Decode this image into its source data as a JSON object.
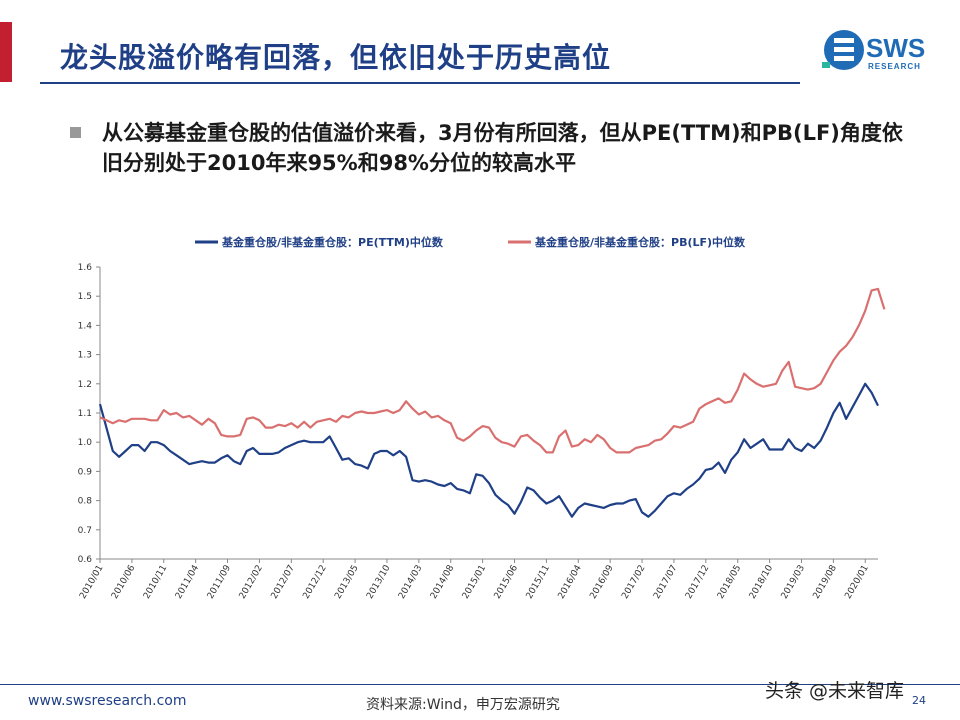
{
  "slide": {
    "title": "龙头股溢价略有回落，但依旧处于历史高位",
    "bullet": "从公募基金重仓股的估值溢价来看，3月份有所回落，但从PE(TTM)和PB(LF)角度依旧分别处于2010年来95%和98%分位的较高水平",
    "logo_main": "SWS",
    "logo_sub": "RESEARCH",
    "logo_icon": "sws-logo-icon",
    "footer_url": "www.swsresearch.com",
    "footer_source": "资料来源:Wind，申万宏源研究",
    "page_number": "24",
    "watermark": "头条 @未来智库",
    "colors": {
      "title": "#1f3f86",
      "accent": "#c21f30",
      "series_pe": "#1f3f86",
      "series_pb": "#d9706f"
    }
  },
  "chart_data": {
    "type": "line",
    "title": "",
    "xlabel": "",
    "ylabel": "",
    "ylim": [
      0.6,
      1.6
    ],
    "yticks": [
      "0.6",
      "0.7",
      "0.8",
      "0.9",
      "1.0",
      "1.1",
      "1.2",
      "1.3",
      "1.4",
      "1.5",
      "1.6"
    ],
    "grid": false,
    "legend_position": "top",
    "x_tick_labels": [
      "2010/01",
      "2010/06",
      "2010/11",
      "2011/04",
      "2011/09",
      "2012/02",
      "2012/07",
      "2012/12",
      "2013/05",
      "2013/10",
      "2014/03",
      "2014/08",
      "2015/01",
      "2015/06",
      "2015/11",
      "2016/04",
      "2016/09",
      "2017/02",
      "2017/07",
      "2017/12",
      "2018/05",
      "2018/10",
      "2019/03",
      "2019/08",
      "2020/01"
    ],
    "x_start": "2010/01",
    "x_end": "2020/03",
    "series": [
      {
        "name": "基金重仓股/非基金重仓股：PE(TTM)中位数",
        "color": "#1f3f86",
        "values": [
          1.13,
          1.05,
          0.97,
          0.95,
          0.97,
          0.99,
          0.99,
          0.97,
          1.0,
          1.0,
          0.99,
          0.97,
          0.955,
          0.94,
          0.925,
          0.93,
          0.935,
          0.93,
          0.93,
          0.945,
          0.955,
          0.935,
          0.925,
          0.97,
          0.98,
          0.96,
          0.96,
          0.96,
          0.965,
          0.98,
          0.99,
          1.0,
          1.005,
          1.0,
          1.0,
          1.0,
          1.02,
          0.98,
          0.94,
          0.945,
          0.925,
          0.92,
          0.91,
          0.96,
          0.97,
          0.97,
          0.955,
          0.97,
          0.95,
          0.87,
          0.865,
          0.87,
          0.865,
          0.855,
          0.85,
          0.86,
          0.84,
          0.835,
          0.825,
          0.89,
          0.885,
          0.86,
          0.82,
          0.8,
          0.785,
          0.755,
          0.795,
          0.845,
          0.835,
          0.81,
          0.79,
          0.8,
          0.815,
          0.78,
          0.745,
          0.775,
          0.79,
          0.785,
          0.78,
          0.775,
          0.785,
          0.79,
          0.79,
          0.8,
          0.805,
          0.76,
          0.745,
          0.765,
          0.79,
          0.815,
          0.825,
          0.82,
          0.84,
          0.855,
          0.875,
          0.905,
          0.91,
          0.93,
          0.895,
          0.94,
          0.965,
          1.01,
          0.98,
          0.995,
          1.01,
          0.975,
          0.975,
          0.975,
          1.01,
          0.98,
          0.97,
          0.995,
          0.98,
          1.005,
          1.05,
          1.1,
          1.135,
          1.08,
          1.12,
          1.16,
          1.2,
          1.17,
          1.125
        ]
      },
      {
        "name": "基金重仓股/非基金重仓股：PB(LF)中位数",
        "color": "#d9706f",
        "values": [
          1.085,
          1.075,
          1.065,
          1.075,
          1.07,
          1.08,
          1.08,
          1.08,
          1.075,
          1.075,
          1.11,
          1.095,
          1.1,
          1.085,
          1.09,
          1.075,
          1.06,
          1.08,
          1.065,
          1.025,
          1.02,
          1.02,
          1.025,
          1.08,
          1.085,
          1.075,
          1.05,
          1.05,
          1.06,
          1.055,
          1.065,
          1.05,
          1.07,
          1.05,
          1.07,
          1.075,
          1.08,
          1.07,
          1.09,
          1.085,
          1.1,
          1.105,
          1.1,
          1.1,
          1.105,
          1.11,
          1.1,
          1.11,
          1.14,
          1.115,
          1.095,
          1.105,
          1.085,
          1.09,
          1.075,
          1.065,
          1.015,
          1.005,
          1.02,
          1.04,
          1.055,
          1.05,
          1.015,
          1.0,
          0.995,
          0.985,
          1.02,
          1.025,
          1.005,
          0.99,
          0.965,
          0.965,
          1.02,
          1.04,
          0.985,
          0.99,
          1.01,
          1.0,
          1.025,
          1.01,
          0.98,
          0.965,
          0.965,
          0.965,
          0.98,
          0.985,
          0.99,
          1.005,
          1.01,
          1.03,
          1.055,
          1.05,
          1.06,
          1.07,
          1.115,
          1.13,
          1.14,
          1.15,
          1.135,
          1.14,
          1.18,
          1.235,
          1.215,
          1.2,
          1.19,
          1.195,
          1.2,
          1.245,
          1.275,
          1.19,
          1.185,
          1.18,
          1.185,
          1.2,
          1.24,
          1.28,
          1.31,
          1.33,
          1.36,
          1.4,
          1.45,
          1.52,
          1.525,
          1.455
        ]
      }
    ]
  }
}
